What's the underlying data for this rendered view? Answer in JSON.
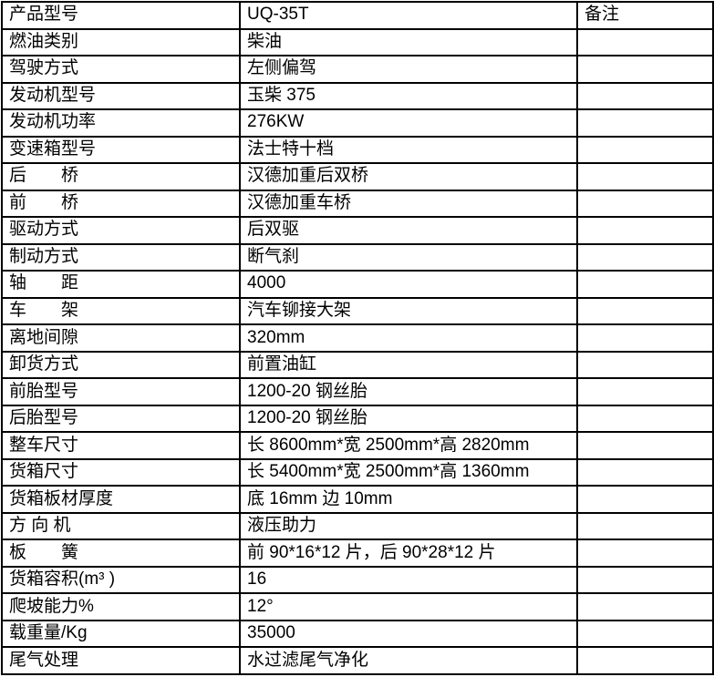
{
  "document": {
    "type": "specification-table",
    "product_model": "UQ-35T",
    "colors": {
      "background": "#ffffff",
      "border": "#000000",
      "text": "#000000"
    }
  },
  "table": {
    "columns": [
      "parameter",
      "value",
      "remark"
    ],
    "remark_header": "备注",
    "rows": [
      {
        "label": "产品型号",
        "value": "UQ-35T",
        "remark": "备注"
      },
      {
        "label": "燃油类别",
        "value": "柴油",
        "remark": ""
      },
      {
        "label": "驾驶方式",
        "value": "左侧偏驾",
        "remark": ""
      },
      {
        "label": "发动机型号",
        "value": "玉柴 375",
        "remark": ""
      },
      {
        "label": "发动机功率",
        "value": "276KW",
        "remark": ""
      },
      {
        "label": "变速箱型号",
        "value": "法士特十档",
        "remark": ""
      },
      {
        "label": "后　　桥",
        "value": "汉德加重后双桥",
        "remark": ""
      },
      {
        "label": "前　　桥",
        "value": "汉德加重车桥",
        "remark": ""
      },
      {
        "label": "驱动方式",
        "value": "后双驱",
        "remark": ""
      },
      {
        "label": "制动方式",
        "value": "断气刹",
        "remark": ""
      },
      {
        "label": "轴　　距",
        "value": "4000",
        "remark": ""
      },
      {
        "label": "车　　架",
        "value": "汽车铆接大架",
        "remark": ""
      },
      {
        "label": "离地间隙",
        "value": "320mm",
        "remark": ""
      },
      {
        "label": "卸货方式",
        "value": "前置油缸",
        "remark": ""
      },
      {
        "label": "前胎型号",
        "value": "1200-20 钢丝胎",
        "remark": ""
      },
      {
        "label": "后胎型号",
        "value": "1200-20 钢丝胎",
        "remark": ""
      },
      {
        "label": "整车尺寸",
        "value": "长 8600mm*宽 2500mm*高 2820mm",
        "remark": ""
      },
      {
        "label": "货箱尺寸",
        "value": "长 5400mm*宽 2500mm*高 1360mm",
        "remark": ""
      },
      {
        "label": "货箱板材厚度",
        "value": "底 16mm 边 10mm",
        "remark": ""
      },
      {
        "label": "方 向 机",
        "value": "液压助力",
        "remark": ""
      },
      {
        "label": "板　　簧",
        "value": "前 90*16*12 片，后 90*28*12 片",
        "remark": ""
      },
      {
        "label": "货箱容积(m³ )",
        "value": "16",
        "remark": ""
      },
      {
        "label": "爬坡能力%",
        "value": "12°",
        "remark": ""
      },
      {
        "label": "载重量/Kg",
        "value": "35000",
        "remark": ""
      },
      {
        "label": "尾气处理",
        "value": "水过滤尾气净化",
        "remark": ""
      }
    ]
  }
}
